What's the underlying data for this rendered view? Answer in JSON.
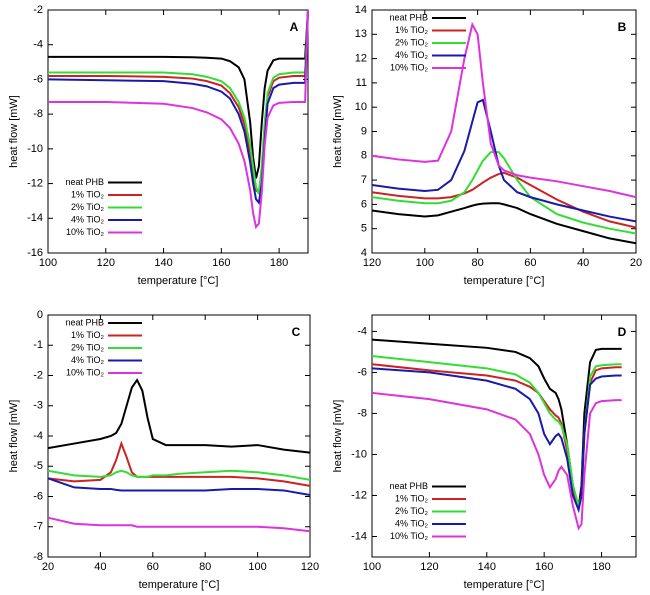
{
  "chart_data": [
    {
      "type": "line",
      "panel_label": "A",
      "x_label": "temperature [°C]",
      "y_label": "heat flow [mW]",
      "legend": "lower left",
      "xlim": [
        100,
        190
      ],
      "xticks": [
        100,
        120,
        140,
        160,
        180
      ],
      "ylim": [
        -16,
        -2
      ],
      "yticks": [
        -16,
        -14,
        -12,
        -10,
        -8,
        -6,
        -4,
        -2
      ],
      "x": [
        100,
        120,
        140,
        150,
        155,
        160,
        163,
        166,
        168,
        170,
        171,
        172,
        173,
        174,
        175,
        176,
        178,
        180,
        185,
        189,
        190
      ],
      "series": [
        {
          "name": "neat PHB",
          "color": "#000000",
          "values": [
            -4.7,
            -4.7,
            -4.7,
            -4.72,
            -4.75,
            -4.8,
            -4.95,
            -5.3,
            -6,
            -8.5,
            -10.5,
            -11.7,
            -11,
            -8.5,
            -6.5,
            -5.5,
            -4.9,
            -4.8,
            -4.8,
            -4.8,
            -2
          ]
        },
        {
          "name": "1% TiO₂",
          "color": "#cc2222",
          "values": [
            -5.8,
            -5.8,
            -5.85,
            -5.95,
            -6.1,
            -6.35,
            -6.8,
            -7.6,
            -8.6,
            -10.2,
            -11.4,
            -12.4,
            -12.5,
            -11.2,
            -8.8,
            -7.0,
            -6.1,
            -5.9,
            -5.8,
            -5.8,
            -2
          ]
        },
        {
          "name": "2% TiO₂",
          "color": "#33dd33",
          "values": [
            -5.6,
            -5.6,
            -5.6,
            -5.7,
            -5.85,
            -6.1,
            -6.5,
            -7.3,
            -8.2,
            -9.8,
            -11,
            -12.2,
            -12.6,
            -11,
            -8.5,
            -6.8,
            -5.9,
            -5.7,
            -5.6,
            -5.6,
            -2
          ]
        },
        {
          "name": "4% TiO₂",
          "color": "#1a1aaa",
          "values": [
            -6,
            -6.05,
            -6.1,
            -6.25,
            -6.4,
            -6.7,
            -7.1,
            -8.0,
            -9,
            -10.8,
            -12,
            -12.9,
            -13.1,
            -12,
            -9.5,
            -7.4,
            -6.5,
            -6.3,
            -6.2,
            -6.2,
            -2
          ]
        },
        {
          "name": "10% TiO₂",
          "color": "#dd33dd",
          "values": [
            -7.3,
            -7.3,
            -7.4,
            -7.65,
            -7.9,
            -8.3,
            -8.8,
            -9.7,
            -10.7,
            -12.4,
            -13.7,
            -14.5,
            -14.3,
            -12.5,
            -9.8,
            -8.2,
            -7.5,
            -7.35,
            -7.3,
            -7.3,
            -2
          ]
        }
      ]
    },
    {
      "type": "line",
      "panel_label": "B",
      "x_label": "temperature [°C]",
      "y_label": "heat flow [mW]",
      "legend": "upper left",
      "xlim": [
        120,
        20
      ],
      "xticks": [
        120,
        100,
        80,
        60,
        40,
        20
      ],
      "ylim": [
        4,
        14
      ],
      "yticks": [
        4,
        5,
        6,
        7,
        8,
        9,
        10,
        11,
        12,
        13,
        14
      ],
      "x": [
        120,
        110,
        100,
        95,
        90,
        85,
        82,
        80,
        78,
        75,
        72,
        70,
        65,
        60,
        50,
        40,
        30,
        20
      ],
      "series": [
        {
          "name": "neat PHB",
          "color": "#000000",
          "values": [
            5.75,
            5.6,
            5.5,
            5.55,
            5.7,
            5.85,
            5.95,
            6.0,
            6.03,
            6.05,
            6.05,
            6.0,
            5.85,
            5.6,
            5.2,
            4.9,
            4.6,
            4.4
          ]
        },
        {
          "name": "1% TiO₂",
          "color": "#cc2222",
          "values": [
            6.5,
            6.35,
            6.25,
            6.25,
            6.3,
            6.45,
            6.6,
            6.75,
            6.9,
            7.1,
            7.25,
            7.3,
            7.1,
            6.8,
            6.2,
            5.7,
            5.3,
            5.05
          ]
        },
        {
          "name": "2% TiO₂",
          "color": "#33dd33",
          "values": [
            6.3,
            6.15,
            6.05,
            6.05,
            6.15,
            6.5,
            7,
            7.4,
            7.8,
            8.15,
            8.15,
            7.9,
            7.0,
            6.3,
            5.6,
            5.25,
            5.0,
            4.8
          ]
        },
        {
          "name": "4% TiO₂",
          "color": "#1a1aaa",
          "values": [
            6.8,
            6.65,
            6.55,
            6.6,
            7.0,
            8.2,
            9.4,
            10.2,
            10.3,
            9.0,
            7.6,
            7.0,
            6.5,
            6.3,
            6.0,
            5.75,
            5.5,
            5.3
          ]
        },
        {
          "name": "10% TiO₂",
          "color": "#dd33dd",
          "values": [
            8.0,
            7.85,
            7.75,
            7.8,
            9.0,
            12.0,
            13.4,
            13.0,
            11.0,
            8.5,
            7.6,
            7.4,
            7.2,
            7.1,
            6.95,
            6.75,
            6.55,
            6.3
          ]
        }
      ]
    },
    {
      "type": "line",
      "panel_label": "C",
      "x_label": "temperature [°C]",
      "y_label": "heat flow [mW]",
      "legend": "upper left",
      "xlim": [
        20,
        120
      ],
      "xticks": [
        20,
        40,
        60,
        80,
        100,
        120
      ],
      "ylim": [
        -8,
        0
      ],
      "yticks": [
        -8,
        -7,
        -6,
        -5,
        -4,
        -3,
        -2,
        -1,
        0
      ],
      "x": [
        20,
        30,
        40,
        44,
        46,
        48,
        50,
        52,
        54,
        56,
        58,
        60,
        65,
        70,
        80,
        90,
        100,
        110,
        120
      ],
      "series": [
        {
          "name": "neat PHB",
          "color": "#000000",
          "values": [
            -4.4,
            -4.25,
            -4.1,
            -4.0,
            -3.9,
            -3.6,
            -3.0,
            -2.4,
            -2.15,
            -2.5,
            -3.4,
            -4.1,
            -4.3,
            -4.3,
            -4.3,
            -4.35,
            -4.3,
            -4.45,
            -4.55
          ]
        },
        {
          "name": "1% TiO₂",
          "color": "#cc2222",
          "values": [
            -5.4,
            -5.5,
            -5.45,
            -5.2,
            -4.8,
            -4.25,
            -4.7,
            -5.2,
            -5.35,
            -5.35,
            -5.35,
            -5.35,
            -5.35,
            -5.35,
            -5.35,
            -5.35,
            -5.4,
            -5.5,
            -5.65
          ]
        },
        {
          "name": "2% TiO₂",
          "color": "#33dd33",
          "values": [
            -5.15,
            -5.3,
            -5.35,
            -5.3,
            -5.2,
            -5.15,
            -5.2,
            -5.3,
            -5.35,
            -5.35,
            -5.35,
            -5.3,
            -5.3,
            -5.25,
            -5.2,
            -5.15,
            -5.2,
            -5.3,
            -5.45
          ]
        },
        {
          "name": "4% TiO₂",
          "color": "#1a1aaa",
          "values": [
            -5.4,
            -5.7,
            -5.75,
            -5.75,
            -5.78,
            -5.8,
            -5.8,
            -5.8,
            -5.8,
            -5.8,
            -5.8,
            -5.8,
            -5.8,
            -5.8,
            -5.8,
            -5.75,
            -5.75,
            -5.8,
            -5.95
          ]
        },
        {
          "name": "10% TiO₂",
          "color": "#dd33dd",
          "values": [
            -6.7,
            -6.9,
            -6.95,
            -6.95,
            -6.95,
            -6.95,
            -6.95,
            -6.95,
            -7.0,
            -7.0,
            -7.0,
            -7.0,
            -7.0,
            -7.0,
            -7.0,
            -7.0,
            -7.0,
            -7.05,
            -7.15
          ]
        }
      ]
    },
    {
      "type": "line",
      "panel_label": "D",
      "x_label": "temperature [°C]",
      "y_label": "heat flow [mW]",
      "legend": "lower left",
      "xlim": [
        100,
        192
      ],
      "xticks": [
        100,
        120,
        140,
        160,
        180
      ],
      "ylim": [
        -15,
        -3.2
      ],
      "yticks": [
        -14,
        -12,
        -10,
        -8,
        -6,
        -4
      ],
      "x": [
        100,
        120,
        140,
        150,
        155,
        158,
        160,
        162,
        164,
        165,
        166,
        168,
        170,
        172,
        173,
        174,
        176,
        178,
        180,
        185,
        187
      ],
      "series": [
        {
          "name": "neat PHB",
          "color": "#000000",
          "values": [
            -4.4,
            -4.6,
            -4.8,
            -5.0,
            -5.3,
            -5.7,
            -6.3,
            -6.8,
            -7.0,
            -7.3,
            -7.8,
            -9.5,
            -11.5,
            -12.6,
            -11.5,
            -8,
            -5.5,
            -4.9,
            -4.85,
            -4.85,
            -4.85
          ]
        },
        {
          "name": "1% TiO₂",
          "color": "#cc2222",
          "values": [
            -5.6,
            -5.9,
            -6.15,
            -6.4,
            -6.7,
            -7.0,
            -7.4,
            -7.8,
            -8.1,
            -8.2,
            -8.5,
            -9.8,
            -11.8,
            -12.6,
            -12.0,
            -9,
            -6.5,
            -5.9,
            -5.8,
            -5.75,
            -5.75
          ]
        },
        {
          "name": "2% TiO₂",
          "color": "#33dd33",
          "values": [
            -5.2,
            -5.5,
            -5.8,
            -6.1,
            -6.5,
            -7.0,
            -7.5,
            -8.0,
            -8.3,
            -8.4,
            -8.6,
            -9.5,
            -11.5,
            -12.5,
            -12.0,
            -9,
            -6.2,
            -5.7,
            -5.65,
            -5.6,
            -5.6
          ]
        },
        {
          "name": "4% TiO₂",
          "color": "#1a1aaa",
          "values": [
            -5.8,
            -6.0,
            -6.4,
            -6.8,
            -7.3,
            -8.0,
            -9.0,
            -9.5,
            -9.1,
            -9.0,
            -9.2,
            -10.2,
            -12,
            -12.7,
            -12,
            -9,
            -6.6,
            -6.3,
            -6.2,
            -6.15,
            -6.15
          ]
        },
        {
          "name": "10% TiO₂",
          "color": "#dd33dd",
          "values": [
            -7.0,
            -7.3,
            -7.8,
            -8.3,
            -9.0,
            -10.0,
            -11.0,
            -11.6,
            -11.2,
            -10.8,
            -10.6,
            -11.0,
            -12.5,
            -13.6,
            -13.4,
            -11,
            -8,
            -7.5,
            -7.4,
            -7.35,
            -7.35
          ]
        }
      ]
    }
  ]
}
